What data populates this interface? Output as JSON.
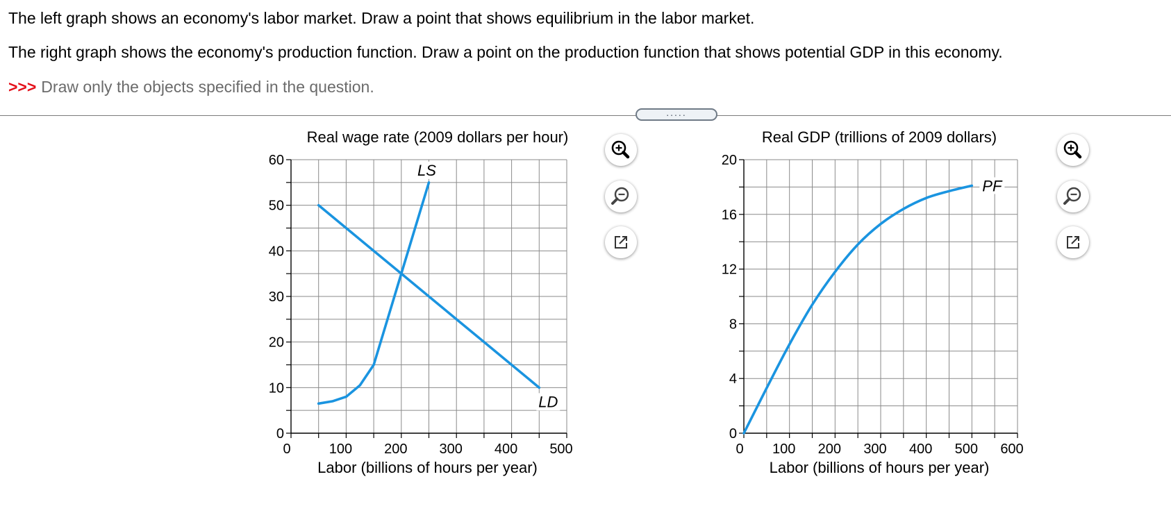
{
  "instructions": {
    "line1": "The left graph shows an economy's labor market. Draw a point that shows equilibrium in the labor market.",
    "line2": "The right graph shows the economy's production function. Draw a point on the production function that shows potential GDP in this economy.",
    "note_marker": ">>>",
    "note_text": "Draw only the objects specified in the question."
  },
  "divider": {
    "handle_label": "....."
  },
  "colors": {
    "curve": "#1a94e0",
    "grid": "#8a8a8a",
    "axis": "#000000",
    "warning": "#e4101a"
  },
  "toolbars": [
    {
      "zoom_in": "zoom-in-icon",
      "zoom_out": "zoom-out-icon",
      "popout": "popout-icon"
    },
    {
      "zoom_in": "zoom-in-icon",
      "zoom_out": "zoom-out-icon",
      "popout": "popout-icon"
    }
  ],
  "chart_data": [
    {
      "type": "line",
      "ylabel": "Real wage rate (2009 dollars per hour)",
      "xlabel": "Labor (billions of hours per year)",
      "xlim": [
        0,
        500
      ],
      "ylim": [
        0,
        60
      ],
      "x_ticks": [
        0,
        100,
        200,
        300,
        400,
        500
      ],
      "y_ticks": [
        0,
        10,
        20,
        30,
        40,
        50,
        60
      ],
      "x_minor_step": 50,
      "y_minor_step": 5,
      "grid": true,
      "series": [
        {
          "name": "LS",
          "x": [
            50,
            75,
            100,
            125,
            150,
            175,
            200,
            225,
            250
          ],
          "y": [
            6.5,
            7,
            8,
            10.5,
            15,
            25,
            35,
            45,
            55
          ]
        },
        {
          "name": "LD",
          "x": [
            50,
            100,
            150,
            200,
            250,
            300,
            350,
            400,
            450
          ],
          "y": [
            50,
            45,
            40,
            35,
            30,
            25,
            20,
            15,
            10
          ]
        }
      ]
    },
    {
      "type": "line",
      "ylabel": "Real GDP (trillions of 2009 dollars)",
      "xlabel": "Labor (billions of hours per year)",
      "xlim": [
        0,
        600
      ],
      "ylim": [
        0,
        20
      ],
      "x_ticks": [
        0,
        100,
        200,
        300,
        400,
        500,
        600
      ],
      "y_ticks": [
        0,
        4,
        8,
        12,
        16,
        20
      ],
      "x_minor_step": 50,
      "y_minor_step": 2,
      "grid": true,
      "series": [
        {
          "name": "PF",
          "x": [
            0,
            50,
            100,
            150,
            200,
            250,
            300,
            350,
            400,
            450,
            500
          ],
          "y": [
            0,
            3.3,
            6.5,
            9.4,
            11.8,
            13.8,
            15.3,
            16.4,
            17.2,
            17.7,
            18.1
          ]
        }
      ]
    }
  ]
}
